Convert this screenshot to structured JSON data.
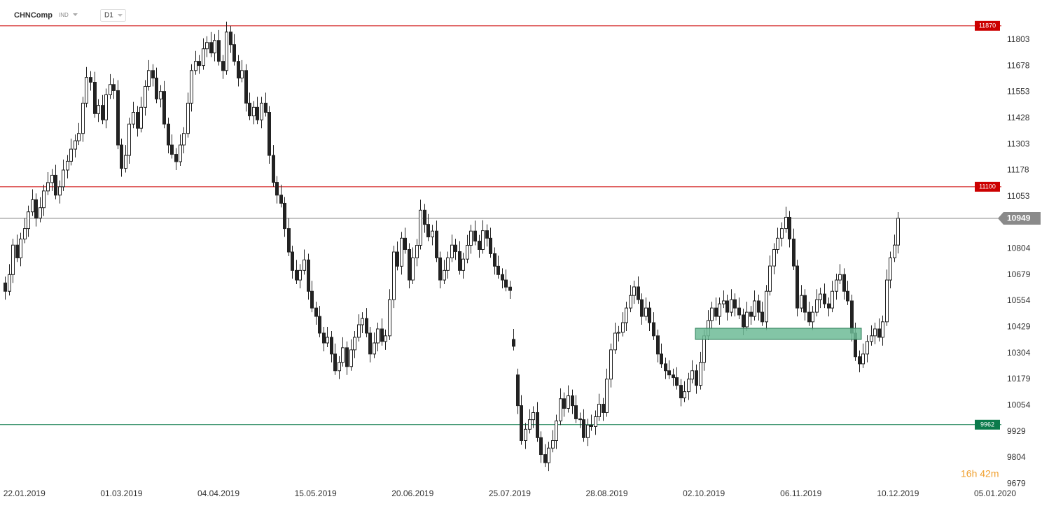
{
  "chart_data": {
    "type": "candlestick",
    "title": "CHNComp",
    "instrument_type": "IND",
    "timeframe": "D1",
    "countdown": "16h 42m",
    "up_color": "#ffffff",
    "down_color": "#222222",
    "outline_color": "#222222",
    "ylim": [
      9650,
      11990
    ],
    "yticks": [
      11803,
      11678,
      11553,
      11428,
      11303,
      11178,
      11053,
      10804,
      10679,
      10554,
      10429,
      10304,
      10179,
      10054,
      9929,
      9804,
      9679
    ],
    "levels": [
      {
        "value": 11870,
        "color": "#cc0000"
      },
      {
        "value": 11100,
        "color": "#cc0000"
      },
      {
        "value": 9962,
        "color": "#0b7a4b"
      }
    ],
    "last_price": 10949,
    "last_price_color": "#8a8a8a",
    "categories": [
      null,
      null,
      null,
      null,
      null,
      "22.01.2019",
      null,
      null,
      null,
      null,
      null,
      null,
      null,
      null,
      null,
      null,
      null,
      null,
      null,
      null,
      null,
      null,
      null,
      null,
      null,
      null,
      null,
      null,
      null,
      null,
      "01.03.2019",
      null,
      null,
      null,
      null,
      null,
      null,
      null,
      null,
      null,
      null,
      null,
      null,
      null,
      null,
      null,
      null,
      null,
      null,
      null,
      null,
      null,
      null,
      null,
      null,
      "04.04.2019",
      null,
      null,
      null,
      null,
      null,
      null,
      null,
      null,
      null,
      null,
      null,
      null,
      null,
      null,
      null,
      null,
      null,
      null,
      null,
      null,
      null,
      null,
      null,
      null,
      "15.05.2019",
      null,
      null,
      null,
      null,
      null,
      null,
      null,
      null,
      null,
      null,
      null,
      null,
      null,
      null,
      null,
      null,
      null,
      null,
      null,
      null,
      null,
      null,
      null,
      null,
      "20.06.2019",
      null,
      null,
      null,
      null,
      null,
      null,
      null,
      null,
      null,
      null,
      null,
      null,
      null,
      null,
      null,
      null,
      null,
      null,
      null,
      null,
      null,
      null,
      null,
      null,
      "25.07.2019",
      null,
      null,
      null,
      null,
      null,
      null,
      null,
      null,
      null,
      null,
      null,
      null,
      null,
      null,
      null,
      null,
      null,
      null,
      null,
      null,
      null,
      null,
      null,
      null,
      "28.08.2019",
      null,
      null,
      null,
      null,
      null,
      null,
      null,
      null,
      null,
      null,
      null,
      null,
      null,
      null,
      null,
      null,
      null,
      null,
      null,
      null,
      null,
      null,
      null,
      null,
      "02.10.2019",
      null,
      null,
      null,
      null,
      null,
      null,
      null,
      null,
      null,
      null,
      null,
      null,
      null,
      null,
      null,
      null,
      null,
      null,
      null,
      null,
      null,
      null,
      null,
      null,
      "06.11.2019",
      null,
      null,
      null,
      null,
      null,
      null,
      null,
      null,
      null,
      null,
      null,
      null,
      null,
      null,
      null,
      null,
      null,
      null,
      null,
      null,
      null,
      null,
      null,
      null,
      "10.12.2019",
      null,
      null,
      null,
      null,
      null,
      null,
      null,
      null,
      null,
      null,
      null,
      null,
      null,
      null,
      null,
      null,
      null,
      null,
      null,
      null,
      null,
      null,
      null,
      null,
      "05.01.2020"
    ],
    "open": [
      10640,
      10600,
      10680,
      10821,
      10760,
      10850,
      10900,
      10980,
      11038,
      10950,
      11000,
      11080,
      11120,
      11155,
      11060,
      11100,
      11180,
      11222,
      11280,
      11320,
      11355,
      11500,
      11623,
      11600,
      11450,
      11489,
      11420,
      11540,
      11589,
      11560,
      11300,
      11188,
      11250,
      11400,
      11456,
      11380,
      11480,
      11580,
      11656,
      11620,
      11520,
      11556,
      11400,
      11300,
      11255,
      11220,
      11300,
      11355,
      11500,
      11656,
      11700,
      11680,
      11760,
      11790,
      11740,
      11800,
      11700,
      11656,
      11840,
      11780,
      11700,
      11620,
      11656,
      11500,
      11439,
      11480,
      11420,
      11500,
      11456,
      11250,
      11121,
      11060,
      11021,
      10900,
      10788,
      10700,
      10654,
      10700,
      10750,
      10600,
      10520,
      10480,
      10400,
      10353,
      10380,
      10300,
      10220,
      10260,
      10330,
      10240,
      10320,
      10380,
      10440,
      10470,
      10400,
      10300,
      10353,
      10420,
      10360,
      10387,
      10560,
      10788,
      10720,
      10854,
      10800,
      10654,
      10760,
      10820,
      10988,
      10920,
      10860,
      10888,
      10760,
      10654,
      10700,
      10760,
      10821,
      10790,
      10700,
      10754,
      10820,
      10888,
      10840,
      10800,
      10890,
      10854,
      10780,
      10720,
      10680,
      10654,
      10620,
      10370,
      10200,
      10053,
      9886,
      9940,
      9986,
      10020,
      9900,
      9819,
      9780,
      9850,
      9886,
      9980,
      10086,
      10040,
      10100,
      10053,
      9990,
      9986,
      9900,
      9960,
      9953,
      10000,
      10060,
      10020,
      10180,
      10320,
      10400,
      10404,
      10450,
      10520,
      10580,
      10621,
      10560,
      10480,
      10520,
      10450,
      10387,
      10300,
      10253,
      10220,
      10200,
      10187,
      10150,
      10090,
      10120,
      10180,
      10220,
      10150,
      10260,
      10387,
      10460,
      10520,
      10480,
      10540,
      10554,
      10500,
      10560,
      10520,
      10487,
      10430,
      10500,
      10480,
      10554,
      10500,
      10454,
      10600,
      10721,
      10800,
      10854,
      10900,
      10954,
      10850,
      10721,
      10520,
      10580,
      10500,
      10454,
      10500,
      10560,
      10587,
      10540,
      10520,
      10600,
      10654,
      10680,
      10600,
      10554,
      10400,
      10287,
      10253,
      10300,
      10360,
      10387,
      10420,
      10380,
      10454,
      10654,
      10760,
      10821,
      null,
      null,
      null,
      null,
      null,
      null,
      null,
      null,
      null,
      null,
      null,
      null,
      null,
      null,
      null,
      null,
      null,
      null,
      null,
      null,
      null,
      null,
      null,
      null,
      null
    ],
    "high": [
      10670,
      10730,
      10851,
      10871,
      10880,
      10950,
      11010,
      11088,
      11068,
      11050,
      11110,
      11170,
      11185,
      11205,
      11130,
      11230,
      11252,
      11330,
      11350,
      11405,
      11530,
      11673,
      11653,
      11650,
      11519,
      11539,
      11570,
      11639,
      11619,
      11610,
      11330,
      11300,
      11430,
      11506,
      11486,
      11530,
      11610,
      11706,
      11686,
      11670,
      11586,
      11606,
      11430,
      11350,
      11285,
      11350,
      11385,
      11550,
      11686,
      11750,
      11730,
      11810,
      11820,
      11840,
      11830,
      11850,
      11730,
      11890,
      11870,
      11830,
      11730,
      11706,
      11686,
      11550,
      11510,
      11530,
      11530,
      11550,
      11486,
      11300,
      11151,
      11110,
      11051,
      10950,
      10818,
      10750,
      10730,
      10800,
      10780,
      10650,
      10550,
      10530,
      10430,
      10430,
      10410,
      10350,
      10290,
      10380,
      10360,
      10370,
      10410,
      10490,
      10500,
      10520,
      10430,
      10403,
      10450,
      10470,
      10417,
      10610,
      10818,
      10838,
      10884,
      10904,
      10830,
      10810,
      10850,
      11038,
      11018,
      10970,
      10918,
      10938,
      10790,
      10750,
      10790,
      10871,
      10851,
      10840,
      10784,
      10870,
      10918,
      10938,
      10870,
      10940,
      10920,
      10904,
      10810,
      10770,
      10710,
      10704,
      10650,
      10420,
      10230,
      10103,
      9970,
      10036,
      10050,
      10070,
      9930,
      9869,
      9880,
      9936,
      10010,
      10136,
      10116,
      10150,
      10130,
      10103,
      10020,
      10036,
      9990,
      10010,
      10030,
      10110,
      10090,
      10230,
      10350,
      10450,
      10434,
      10500,
      10550,
      10630,
      10651,
      10671,
      10590,
      10570,
      10550,
      10500,
      10417,
      10350,
      10283,
      10270,
      10230,
      10237,
      10180,
      10170,
      10210,
      10270,
      10250,
      10310,
      10417,
      10510,
      10550,
      10570,
      10570,
      10604,
      10584,
      10610,
      10590,
      10570,
      10517,
      10550,
      10530,
      10604,
      10584,
      10550,
      10630,
      10771,
      10830,
      10904,
      10930,
      11004,
      10984,
      10900,
      10751,
      10630,
      10610,
      10550,
      10530,
      10610,
      10617,
      10637,
      10570,
      10650,
      10684,
      10730,
      10710,
      10650,
      10584,
      10450,
      10317,
      10350,
      10390,
      10437,
      10450,
      10470,
      10484,
      10704,
      10790,
      10871,
      10979,
      null,
      null,
      null,
      null,
      null,
      null,
      null,
      null,
      null,
      null,
      null,
      null,
      null,
      null,
      null,
      null,
      null,
      null,
      null,
      null,
      null,
      null,
      null,
      null,
      null
    ],
    "low": [
      10560,
      10580,
      10640,
      10740,
      10720,
      10830,
      10860,
      10960,
      10910,
      10930,
      10960,
      11060,
      11080,
      11040,
      11020,
      11080,
      11140,
      11202,
      11240,
      11300,
      11315,
      11480,
      11560,
      11430,
      11410,
      11400,
      11380,
      11520,
      11520,
      11280,
      11148,
      11168,
      11210,
      11380,
      11340,
      11360,
      11440,
      11560,
      11580,
      11500,
      11480,
      11380,
      11260,
      11235,
      11180,
      11200,
      11260,
      11335,
      11460,
      11636,
      11640,
      11660,
      11720,
      11720,
      11700,
      11680,
      11616,
      11636,
      11740,
      11680,
      11580,
      11600,
      11460,
      11419,
      11399,
      11400,
      11380,
      11436,
      11210,
      11101,
      11020,
      11001,
      10860,
      10768,
      10660,
      10634,
      10614,
      10680,
      10560,
      10500,
      10440,
      10380,
      10313,
      10333,
      10260,
      10200,
      10180,
      10240,
      10200,
      10220,
      10280,
      10360,
      10400,
      10380,
      10260,
      10280,
      10313,
      10340,
      10320,
      10367,
      10520,
      10700,
      10680,
      10780,
      10614,
      10634,
      10720,
      10800,
      10880,
      10840,
      10820,
      10740,
      10614,
      10634,
      10660,
      10740,
      10750,
      10680,
      10660,
      10734,
      10780,
      10820,
      10760,
      10780,
      10814,
      10760,
      10680,
      10660,
      10614,
      10600,
      10564,
      10317,
      10013,
      9866,
      9846,
      9920,
      9946,
      9880,
      9779,
      9760,
      9740,
      9830,
      9846,
      9960,
      10000,
      10020,
      10013,
      9970,
      9946,
      9880,
      9860,
      9933,
      9913,
      9980,
      9980,
      10000,
      10140,
      10300,
      10360,
      10384,
      10410,
      10500,
      10540,
      10540,
      10440,
      10460,
      10410,
      10367,
      10260,
      10233,
      10180,
      10180,
      10147,
      10130,
      10050,
      10070,
      10080,
      10160,
      10110,
      10130,
      10220,
      10367,
      10420,
      10460,
      10440,
      10520,
      10460,
      10480,
      10480,
      10467,
      10390,
      10410,
      10440,
      10460,
      10460,
      10434,
      10414,
      10580,
      10681,
      10780,
      10814,
      10880,
      10810,
      10701,
      10480,
      10500,
      10460,
      10434,
      10414,
      10480,
      10520,
      10520,
      10480,
      10500,
      10560,
      10634,
      10560,
      10534,
      10360,
      10267,
      10213,
      10233,
      10260,
      10340,
      10347,
      10360,
      10340,
      10434,
      10614,
      10740,
      10781,
      null,
      null,
      null,
      null,
      null,
      null,
      null,
      null,
      null,
      null,
      null,
      null,
      null,
      null,
      null,
      null,
      null,
      null,
      null,
      null,
      null,
      null,
      null,
      null,
      null
    ],
    "close": [
      10600,
      10680,
      10821,
      10760,
      10850,
      10900,
      10980,
      11038,
      10950,
      11000,
      11080,
      11120,
      11155,
      11060,
      11100,
      11180,
      11222,
      11280,
      11320,
      11355,
      11500,
      11623,
      11600,
      11450,
      11489,
      11420,
      11540,
      11589,
      11560,
      11300,
      11188,
      11250,
      11400,
      11456,
      11380,
      11480,
      11580,
      11656,
      11620,
      11520,
      11556,
      11400,
      11300,
      11255,
      11220,
      11300,
      11355,
      11500,
      11656,
      11700,
      11680,
      11760,
      11790,
      11740,
      11800,
      11700,
      11656,
      11840,
      11780,
      11700,
      11620,
      11656,
      11500,
      11439,
      11480,
      11420,
      11500,
      11456,
      11250,
      11121,
      11060,
      11021,
      10900,
      10788,
      10700,
      10654,
      10700,
      10750,
      10600,
      10520,
      10480,
      10400,
      10353,
      10380,
      10300,
      10220,
      10260,
      10330,
      10240,
      10320,
      10380,
      10440,
      10470,
      10400,
      10300,
      10353,
      10420,
      10360,
      10387,
      10560,
      10788,
      10720,
      10854,
      10800,
      10654,
      10760,
      10820,
      10988,
      10920,
      10860,
      10888,
      10760,
      10654,
      10700,
      10760,
      10821,
      10790,
      10700,
      10754,
      10820,
      10888,
      10840,
      10800,
      10890,
      10854,
      10780,
      10720,
      10680,
      10654,
      10620,
      10604,
      10337,
      10053,
      9886,
      9940,
      9986,
      10020,
      9900,
      9819,
      9780,
      9850,
      9886,
      9980,
      10086,
      10040,
      10100,
      10053,
      9990,
      9986,
      9900,
      9960,
      9953,
      10000,
      10060,
      10020,
      10180,
      10320,
      10400,
      10404,
      10450,
      10520,
      10580,
      10621,
      10560,
      10480,
      10520,
      10450,
      10387,
      10300,
      10253,
      10220,
      10200,
      10187,
      10150,
      10090,
      10120,
      10180,
      10220,
      10150,
      10260,
      10387,
      10460,
      10520,
      10480,
      10540,
      10554,
      10500,
      10560,
      10520,
      10487,
      10430,
      10500,
      10480,
      10554,
      10500,
      10454,
      10600,
      10721,
      10800,
      10854,
      10900,
      10954,
      10850,
      10721,
      10520,
      10580,
      10500,
      10454,
      10500,
      10560,
      10587,
      10540,
      10520,
      10600,
      10654,
      10680,
      10600,
      10554,
      10400,
      10287,
      10253,
      10300,
      10360,
      10387,
      10420,
      10380,
      10454,
      10654,
      10760,
      10821,
      10949,
      null,
      null,
      null,
      null,
      null,
      null,
      null,
      null,
      null,
      null,
      null,
      null,
      null,
      null,
      null,
      null,
      null,
      null,
      null,
      null,
      null,
      null,
      null,
      null,
      null
    ]
  }
}
